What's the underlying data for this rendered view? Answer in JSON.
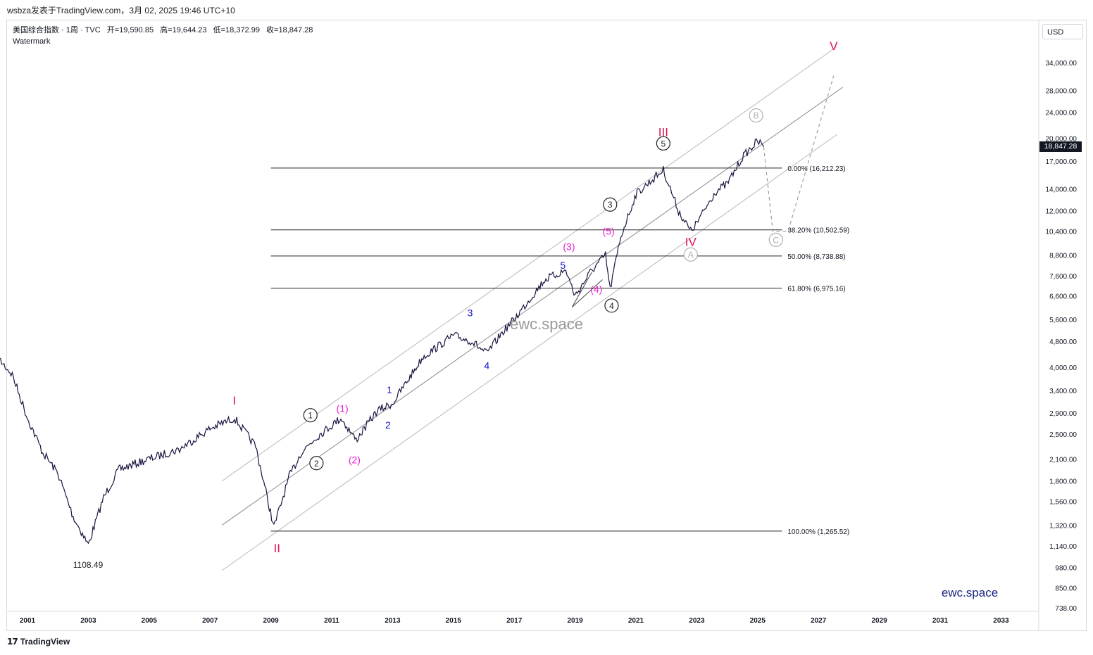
{
  "caption": "wsbza发表于TradingView.com，3月 02, 2025 19:46 UTC+10",
  "legend": {
    "symbol": "美国综合指数 · 1周 · TVC",
    "open": "开=19,590.85",
    "high": "高=19,644.23",
    "low": "低=18,372.99",
    "close": "收=18,847.28",
    "watermark": "Watermark"
  },
  "currency_button": "USD",
  "last_price": "18,847.28",
  "price_axis_ticks": [
    "34,000.00",
    "28,000.00",
    "24,000.00",
    "20,000.00",
    "17,000.00",
    "14,000.00",
    "12,000.00",
    "10,400.00",
    "8,800.00",
    "7,600.00",
    "6,600.00",
    "5,600.00",
    "4,800.00",
    "4,000.00",
    "3,400.00",
    "2,900.00",
    "2,500.00",
    "2,100.00",
    "1,800.00",
    "1,560.00",
    "1,320.00",
    "1,140.00",
    "980.00",
    "850.00",
    "738.00"
  ],
  "time_axis_ticks": [
    "2001",
    "2003",
    "2005",
    "2007",
    "2009",
    "2011",
    "2013",
    "2015",
    "2017",
    "2019",
    "2021",
    "2023",
    "2025",
    "2027",
    "2029",
    "2031",
    "2033"
  ],
  "fib_levels": [
    {
      "label": "0.00% (16,212.23)"
    },
    {
      "label": "38.20% (10,502.59)"
    },
    {
      "label": "50.00% (8,738.88)"
    },
    {
      "label": "61.80% (6,975.16)"
    },
    {
      "label": "100.00% (1,265.52)"
    }
  ],
  "low_annotation": "1108.49",
  "center_watermark": "ewc.space",
  "brand_corner": "ewc.space",
  "branding": "TradingView",
  "chart_data": {
    "type": "line",
    "scale": "log",
    "currency": "USD",
    "x": [
      "2000",
      "2000.5",
      "2001",
      "2001.5",
      "2002",
      "2002.5",
      "2003",
      "2003.5",
      "2004",
      "2005",
      "2006",
      "2007",
      "2007.8",
      "2008.5",
      "2009.1",
      "2009.6",
      "2010",
      "2010.5",
      "2011.3",
      "2011.8",
      "2012.5",
      "2013",
      "2014",
      "2015",
      "2015.6",
      "2016.1",
      "2016.6",
      "2017",
      "2018",
      "2018.7",
      "2019",
      "2019.5",
      "2020",
      "2020.15",
      "2020.5",
      "2021",
      "2021.9",
      "2022.4",
      "2022.8",
      "2023",
      "2023.6",
      "2024",
      "2024.5",
      "2025",
      "2025.2"
    ],
    "series": [
      {
        "values": [
          4300,
          3800,
          2800,
          2200,
          1900,
          1400,
          1150,
          1600,
          1950,
          2100,
          2250,
          2600,
          2800,
          2300,
          1300,
          1850,
          2200,
          2450,
          2800,
          2400,
          2950,
          3100,
          4300,
          5000,
          4800,
          4400,
          5100,
          5600,
          7400,
          7900,
          6600,
          7800,
          8800,
          6900,
          10000,
          13500,
          16000,
          12000,
          10400,
          11000,
          13700,
          14500,
          17500,
          19600,
          18847
        ]
      }
    ],
    "ylim": [
      738,
      40000
    ],
    "xlim": [
      "2000",
      "2034"
    ],
    "wave_labels": {
      "primary": [
        "I",
        "II",
        "III",
        "IV",
        "V"
      ],
      "circled": [
        "1",
        "2",
        "3",
        "4",
        "5"
      ],
      "parenthesized": [
        "(1)",
        "(2)",
        "(3)",
        "(4)",
        "(5)"
      ],
      "minor": [
        "1",
        "2",
        "3",
        "4",
        "5"
      ],
      "correction": [
        "A",
        "B",
        "C"
      ]
    },
    "colors": {
      "price": "#1b1440",
      "primary_wave": "#e0114f",
      "paren_wave": "#e91ecf",
      "minor_wave": "#1414c8",
      "channel": "#b8b8b8",
      "fib": "#222222"
    },
    "grid": false
  }
}
